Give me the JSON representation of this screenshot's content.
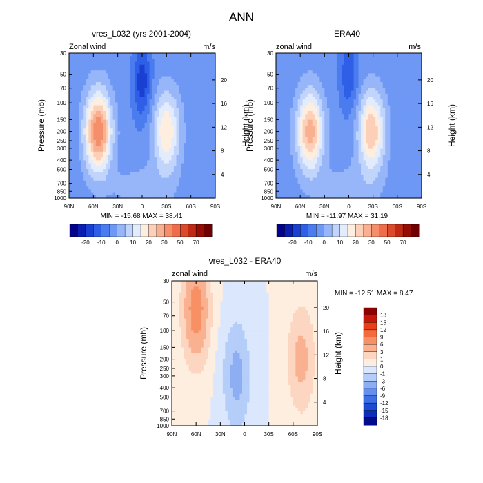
{
  "figure_title": "ANN",
  "chart_data": [
    {
      "type": "heatmap",
      "title": "vres_L032 (yrs 2001-2004)",
      "left_string": "Zonal wind",
      "right_string": "m/s",
      "ylabel": "Pressure (mb)",
      "ylabel_right": "Height (km)",
      "x_ticks": [
        "90N",
        "60N",
        "30N",
        "0",
        "30S",
        "60S",
        "90S"
      ],
      "y_ticks": [
        "30",
        "50",
        "70",
        "100",
        "150",
        "200",
        "250",
        "300",
        "400",
        "500",
        "700",
        "850",
        "1000"
      ],
      "y_right_ticks": [
        "20",
        "16",
        "12",
        "8",
        "4"
      ],
      "stats": "MIN = -15.68  MAX =  38.41",
      "field": {
        "peaks": [
          {
            "lat": 54,
            "p": 200,
            "value": 38
          },
          {
            "lat": -30,
            "p": 200,
            "value": 23
          },
          {
            "lat": 0,
            "p": 60,
            "value": -15
          }
        ]
      }
    },
    {
      "type": "heatmap",
      "title": "ERA40",
      "left_string": "zonal wind",
      "right_string": "m/s",
      "ylabel": "Pressure (mb)",
      "ylabel_right": "Height (km)",
      "x_ticks": [
        "90N",
        "60N",
        "30N",
        "0",
        "30S",
        "60S",
        "90S"
      ],
      "y_ticks": [
        "30",
        "50",
        "70",
        "100",
        "150",
        "200",
        "250",
        "300",
        "400",
        "500",
        "700",
        "850",
        "1000"
      ],
      "y_right_ticks": [
        "20",
        "16",
        "12",
        "8",
        "4"
      ],
      "stats": "MIN = -11.97  MAX =  31.19",
      "field": {
        "peaks": [
          {
            "lat": 48,
            "p": 200,
            "value": 31
          },
          {
            "lat": -28,
            "p": 200,
            "value": 28
          },
          {
            "lat": 0,
            "p": 50,
            "value": -12
          }
        ]
      }
    },
    {
      "type": "heatmap",
      "title": "vres_L032 - ERA40",
      "left_string": "zonal wind",
      "right_string": "m/s",
      "ylabel": "Pressure (mb)",
      "ylabel_right": "Height (km)",
      "x_ticks": [
        "90N",
        "60N",
        "30N",
        "0",
        "30S",
        "60S",
        "90S"
      ],
      "y_ticks": [
        "30",
        "50",
        "70",
        "100",
        "150",
        "200",
        "250",
        "300",
        "400",
        "500",
        "700",
        "850",
        "1000"
      ],
      "y_right_ticks": [
        "20",
        "16",
        "12",
        "8",
        "4"
      ],
      "stats": "MIN = -12.51  MAX =   8.47",
      "field": {
        "peaks": [
          {
            "lat": 60,
            "p": 60,
            "value": 8
          },
          {
            "lat": -70,
            "p": 200,
            "value": 4
          },
          {
            "lat": 10,
            "p": 300,
            "value": -4
          }
        ]
      }
    }
  ],
  "colorbar_full": {
    "labels": [
      "-20",
      "-10",
      "0",
      "10",
      "20",
      "30",
      "50",
      "70"
    ],
    "colors": [
      "#02028a",
      "#0a1fb0",
      "#1940d3",
      "#2e5fe6",
      "#4a7cf0",
      "#6f98f5",
      "#97b6fa",
      "#c1d5fc",
      "#e3ecfd",
      "#fdeee0",
      "#fcd0b8",
      "#f9b090",
      "#f58f6b",
      "#ee6d4a",
      "#dc4a2c",
      "#c02a14",
      "#960d06",
      "#700000"
    ]
  },
  "colorbar_diff": {
    "labels": [
      "18",
      "15",
      "12",
      "9",
      "6",
      "3",
      "1",
      "0",
      "-1",
      "-3",
      "-6",
      "-9",
      "-12",
      "-15",
      "-18"
    ],
    "colors": [
      "#8b0000",
      "#c3180a",
      "#ea3d19",
      "#f46a3d",
      "#f79065",
      "#f9b190",
      "#fcd6c0",
      "#fdeee0",
      "#dbe7fd",
      "#b5cdf9",
      "#8eaef4",
      "#6690ee",
      "#3e6fe6",
      "#1c4bd4",
      "#0a2eb7",
      "#020b8b"
    ]
  }
}
